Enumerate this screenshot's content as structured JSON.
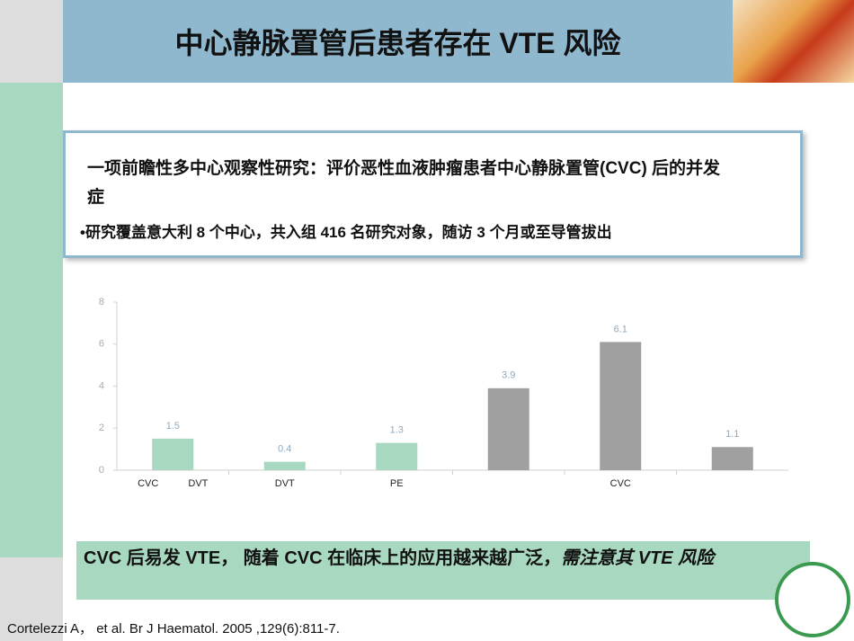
{
  "header": {
    "title": "中心静脉置管后患者存在 VTE 风险"
  },
  "study": {
    "heading": "一项前瞻性多中心观察性研究：评价恶性血液肿瘤患者中心静脉置管(CVC) 后的并发症",
    "bullet": "研究覆盖意大利 8 个中心，共入组 416 名研究对象，随访 3 个月或至导管拔出"
  },
  "chart_data": {
    "type": "bar",
    "categories": [
      "CVC DVT",
      "DVT",
      "PE",
      null,
      "CVC",
      null
    ],
    "values": [
      1.5,
      0.4,
      1.3,
      3.9,
      6.1,
      1.1
    ],
    "colors": [
      "#a8d8c0",
      "#a8d8c0",
      "#a8d8c0",
      "#a0a0a0",
      "#a0a0a0",
      "#a0a0a0"
    ],
    "ylim": [
      0,
      8
    ],
    "yticks": [
      0,
      2,
      4,
      6,
      8
    ],
    "grid": false
  },
  "conclusion": {
    "text": "CVC 后易发 VTE， 随着 CVC 在临床上的应用越来越广泛，",
    "emphasis": "需注意其 VTE 风险"
  },
  "citation": "Cortelezzi A， et al. Br J Haematol. 2005 ,129(6):811-7."
}
